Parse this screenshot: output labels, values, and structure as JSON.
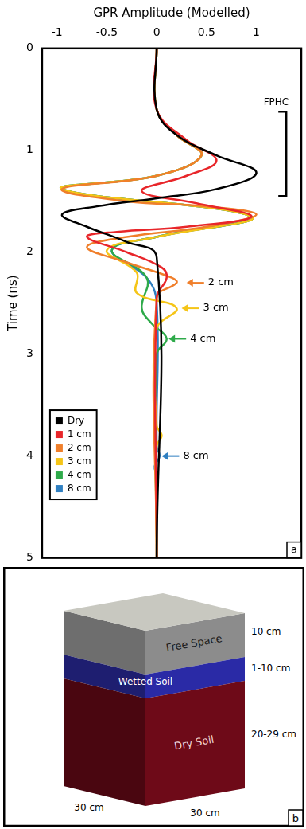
{
  "chart_data": {
    "type": "line",
    "x_label": "GPR Amplitude (Modelled)",
    "y_label": "Time (ns)",
    "xlim": [
      -1.15,
      1.45
    ],
    "xticks": [
      -1,
      -0.5,
      0,
      0.5,
      1
    ],
    "ylim": [
      0,
      5
    ],
    "yticks": [
      0,
      1,
      2,
      3,
      4,
      5
    ],
    "grid": false,
    "legend": "lower left",
    "panel_label": "a",
    "series": [
      {
        "name": "Dry",
        "color": "#000000",
        "x": [
          0,
          0,
          0.2,
          0.6,
          1.0,
          0.6,
          0,
          -0.6,
          -0.95,
          -0.7,
          -0.3,
          0,
          0
        ],
        "y": [
          0,
          0.6,
          0.85,
          1.05,
          1.22,
          1.38,
          1.47,
          1.55,
          1.63,
          1.75,
          1.9,
          2.05,
          5
        ]
      },
      {
        "name": "1 cm",
        "color": "#e8262a",
        "x": [
          0,
          0,
          0.3,
          0.6,
          0.3,
          -0.15,
          0.4,
          0.95,
          0.3,
          -0.4,
          -0.7,
          -0.3,
          0.05,
          0.1,
          0,
          0
        ],
        "y": [
          0,
          0.6,
          0.9,
          1.1,
          1.25,
          1.4,
          1.52,
          1.65,
          1.75,
          1.8,
          1.85,
          2.0,
          2.15,
          2.25,
          2.45,
          5
        ]
      },
      {
        "name": "2 cm",
        "color": "#f07f2b",
        "x": [
          0,
          0,
          0.2,
          0.45,
          0,
          -0.95,
          -0.3,
          0.5,
          1.0,
          0.5,
          -0.3,
          -0.7,
          -0.3,
          0.15,
          0.2,
          0,
          0
        ],
        "y": [
          0,
          0.6,
          0.85,
          1.05,
          1.25,
          1.38,
          1.5,
          1.55,
          1.63,
          1.75,
          1.85,
          1.95,
          2.1,
          2.25,
          2.3,
          2.45,
          5
        ]
      },
      {
        "name": "3 cm",
        "color": "#f5c518",
        "x": [
          0,
          0,
          0.2,
          0.45,
          0,
          -0.95,
          0.95,
          0,
          -0.5,
          -0.2,
          -0.2,
          0.2,
          0,
          0,
          0.05,
          0,
          0
        ],
        "y": [
          0,
          0.6,
          0.85,
          1.05,
          1.25,
          1.38,
          1.65,
          1.85,
          1.98,
          2.2,
          2.4,
          2.55,
          2.75,
          3.7,
          3.8,
          3.9,
          5
        ]
      },
      {
        "name": "4 cm",
        "color": "#2eaa4a",
        "x": [
          0,
          0,
          0.2,
          0.45,
          0,
          -0.95,
          0.95,
          0,
          -0.45,
          -0.1,
          -0.15,
          -0.05,
          0.1,
          0,
          0
        ],
        "y": [
          0,
          0.6,
          0.85,
          1.05,
          1.25,
          1.38,
          1.65,
          1.85,
          1.98,
          2.25,
          2.55,
          2.7,
          2.85,
          3.0,
          5
        ]
      },
      {
        "name": "8 cm",
        "color": "#2f7fc1",
        "x": [
          0,
          0,
          0.2,
          0.45,
          0,
          -0.95,
          0.95,
          0,
          -0.45,
          -0.1,
          0,
          0,
          0.03,
          -0.02,
          0,
          0
        ],
        "y": [
          0,
          0.6,
          0.85,
          1.05,
          1.25,
          1.38,
          1.65,
          1.85,
          1.98,
          2.25,
          2.5,
          3.9,
          4.0,
          4.1,
          4.2,
          5
        ]
      }
    ],
    "annotations": [
      {
        "text": "2 cm",
        "x": 0.3,
        "y": 2.3,
        "color": "#f07f2b"
      },
      {
        "text": "3 cm",
        "x": 0.25,
        "y": 2.55,
        "color": "#f5c518"
      },
      {
        "text": "4 cm",
        "x": 0.12,
        "y": 2.85,
        "color": "#2eaa4a"
      },
      {
        "text": "8 cm",
        "x": 0.05,
        "y": 4.0,
        "color": "#2f7fc1"
      }
    ],
    "bracket": {
      "text": "FPHC",
      "x": 1.3,
      "y": [
        0.62,
        1.45
      ]
    }
  },
  "diagram": {
    "panel_label": "b",
    "layers": [
      {
        "label": "Free Space",
        "thickness": "10 cm"
      },
      {
        "label": "Wetted Soil",
        "thickness": "1-10 cm"
      },
      {
        "label": "Dry Soil",
        "thickness": "20-29 cm"
      }
    ],
    "width": "30 cm",
    "depth": "30 cm"
  }
}
